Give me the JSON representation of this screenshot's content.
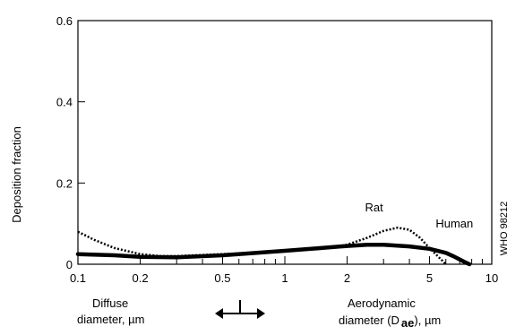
{
  "chart_data": {
    "type": "line",
    "title": "",
    "ylabel": "Deposition fraction",
    "xlabel_left": [
      "Diffuse",
      "diameter, µm"
    ],
    "xlabel_right": [
      "Aerodynamic",
      "diameter (D",
      "ae",
      "), µm"
    ],
    "x_scale": "log",
    "xlim": [
      0.1,
      10
    ],
    "ylim": [
      0,
      0.6
    ],
    "x_ticks": [
      {
        "value": 0.1,
        "label": "0.1"
      },
      {
        "value": 0.2,
        "label": "0.2"
      },
      {
        "value": 0.5,
        "label": "0.5"
      },
      {
        "value": 1,
        "label": "1"
      },
      {
        "value": 2,
        "label": "2"
      },
      {
        "value": 5,
        "label": "5"
      },
      {
        "value": 10,
        "label": "10"
      }
    ],
    "y_ticks": [
      {
        "value": 0,
        "label": "0"
      },
      {
        "value": 0.2,
        "label": "0.2"
      },
      {
        "value": 0.4,
        "label": "0.4"
      },
      {
        "value": 0.6,
        "label": "0.6"
      }
    ],
    "series": [
      {
        "name": "Human",
        "style": "solid-thick",
        "x": [
          0.1,
          0.15,
          0.2,
          0.3,
          0.5,
          1,
          1.5,
          2,
          2.5,
          3,
          4,
          5,
          6,
          6.5,
          7,
          7.5,
          7.8
        ],
        "y": [
          0.025,
          0.022,
          0.018,
          0.017,
          0.022,
          0.033,
          0.04,
          0.045,
          0.048,
          0.048,
          0.044,
          0.038,
          0.028,
          0.02,
          0.012,
          0.004,
          0.0
        ]
      },
      {
        "name": "Rat",
        "style": "dotted",
        "x": [
          0.1,
          0.12,
          0.15,
          0.2,
          0.25,
          0.3,
          0.5,
          1,
          1.5,
          2,
          2.5,
          3,
          3.5,
          4,
          4.5,
          5,
          6
        ],
        "y": [
          0.08,
          0.06,
          0.04,
          0.025,
          0.02,
          0.02,
          0.025,
          0.032,
          0.038,
          0.048,
          0.065,
          0.082,
          0.09,
          0.085,
          0.065,
          0.04,
          0.0
        ]
      }
    ],
    "annotations": [
      {
        "text": "Rat",
        "x": 2.7,
        "y": 0.13
      },
      {
        "text": "Human",
        "x": 6.6,
        "y": 0.09
      }
    ],
    "side_label": "WHO 98212",
    "legend": "none",
    "grid": false
  }
}
